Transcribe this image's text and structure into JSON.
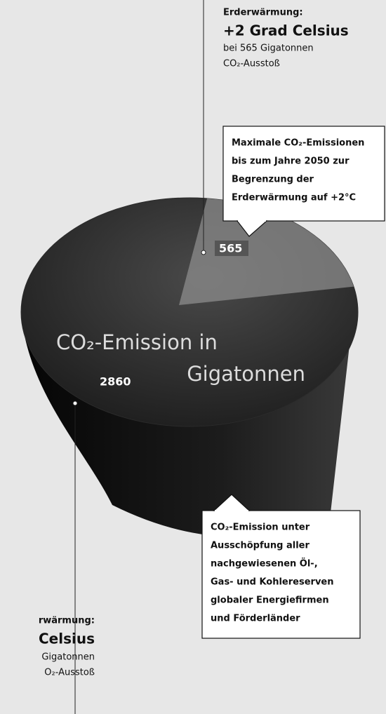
{
  "chart_data": {
    "type": "pie",
    "title": [
      "CO₂-Emission in",
      "Gigatonnen"
    ],
    "values": [
      565,
      2860
    ],
    "colors": [
      "#8c8c8c",
      "#2b2b2b"
    ],
    "annotations": [
      {
        "lines": [
          "Erderwärmung:",
          "+2 Grad Celsius",
          "bei 565 Gigatonnen",
          "CO₂-Ausstoß"
        ]
      },
      {
        "lines": [
          "rwärmung:",
          "Celsius",
          "Gigatonnen",
          "O₂-Ausstoß"
        ]
      }
    ],
    "callouts": [
      {
        "lines": [
          "Maximale CO₂-Emissionen",
          "bis zum Jahre 2050 zur",
          "Begrenzung der",
          "Erderwärmung auf +2°C"
        ]
      },
      {
        "lines": [
          "CO₂-Emission unter",
          "Ausschöpfung aller",
          "nachgewiesenen Öl-,",
          "Gas- und Kohlereserven",
          "globaler Energiefirmen",
          "und Förderländer"
        ]
      }
    ]
  }
}
